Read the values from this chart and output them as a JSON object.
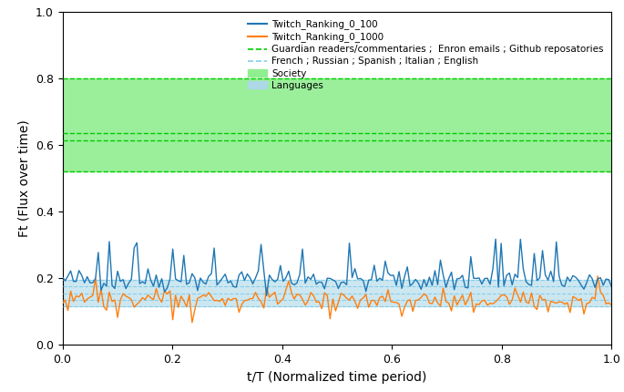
{
  "title": "",
  "xlabel": "t/T (Normalized time period)",
  "ylabel": "Ft (Flux over time)",
  "xlim": [
    0.0,
    1.0
  ],
  "ylim": [
    0.0,
    1.0
  ],
  "yticks": [
    0.0,
    0.2,
    0.4,
    0.6,
    0.8,
    1.0
  ],
  "xticks": [
    0.0,
    0.2,
    0.4,
    0.6,
    0.8,
    1.0
  ],
  "society_band": [
    0.52,
    0.8
  ],
  "society_color": "#90EE90",
  "languages_band_lo": 0.115,
  "languages_band_hi": 0.195,
  "languages_color": "#ADD8E6",
  "dashed_lines_society": [
    0.52,
    0.615,
    0.635,
    0.8
  ],
  "dashed_lines_languages": [
    0.115,
    0.135,
    0.155,
    0.175,
    0.195
  ],
  "dashed_green_color": "#00CC00",
  "dashed_blue_color": "#87CEEB",
  "line_100_color": "#1f77b4",
  "line_1000_color": "#ff7f0e",
  "legend_labels": [
    "Twitch_Ranking_0_100",
    "Twitch_Ranking_0_1000",
    "Guardian readers/commentaries ;  Enron emails ; Github reposatories",
    "French ; Russian ; Spanish ; Italian ; English",
    "Society",
    "Languages"
  ],
  "seed": 42,
  "n_points": 200
}
